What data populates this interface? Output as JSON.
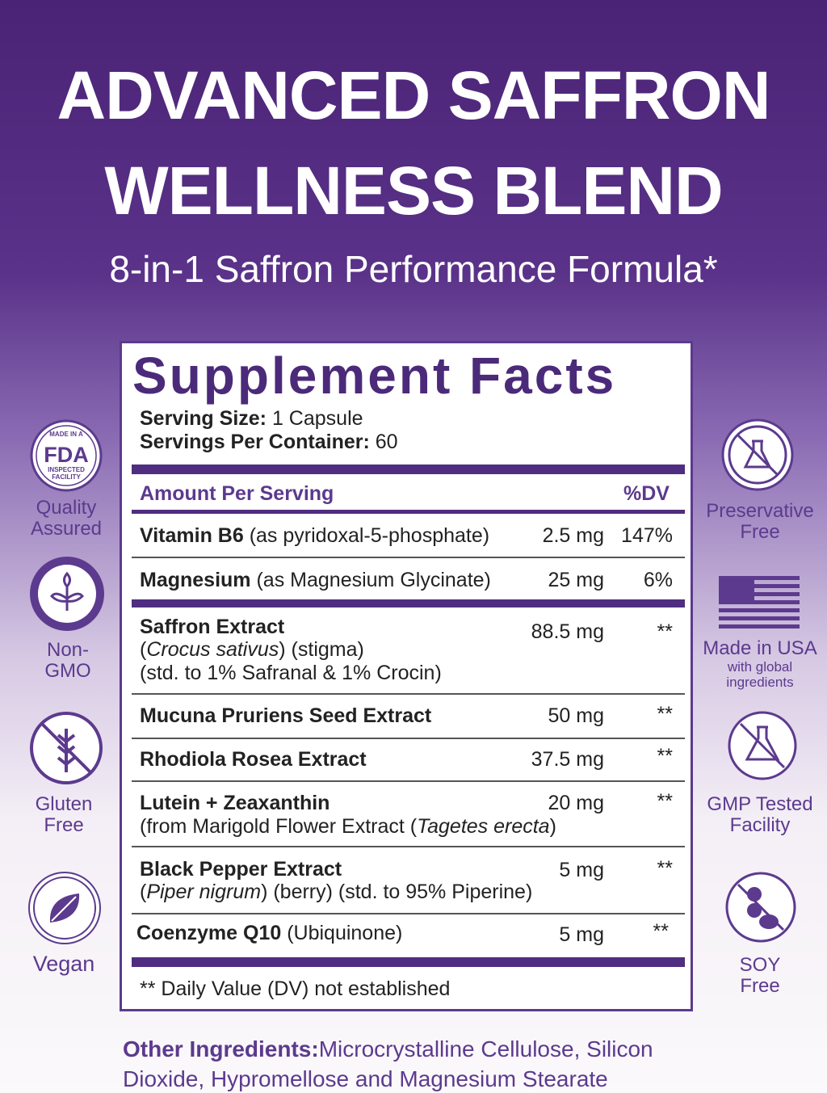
{
  "header": {
    "title_lines": [
      "ADVANCED SAFFRON",
      "WELLNESS BLEND"
    ],
    "subtitle": "8-in-1 Saffron Performance Formula*"
  },
  "facts": {
    "heading": "Supplement Facts",
    "serving_size_label": "Serving Size:",
    "serving_size": "1 Capsule",
    "servings_label": "Servings Per Container:",
    "servings": "60",
    "amount_header": "Amount Per Serving",
    "dv_header": "%DV",
    "rows": [
      {
        "name": "Vitamin B6",
        "note": "(as pyridoxal-5-phosphate)",
        "amount": "2.5 mg",
        "dv": "147%"
      },
      {
        "name": "Magnesium",
        "note": "(as Magnesium Glycinate)",
        "amount": "25 mg",
        "dv": "6%"
      },
      {
        "name": "Saffron Extract",
        "line1": [
          "(",
          "Crocus sativus",
          ") (stigma)"
        ],
        "line2": "(std. to 1% Safranal & 1% Crocin)",
        "amount": "88.5 mg",
        "dv": "**"
      },
      {
        "name": "Mucuna Pruriens Seed Extract",
        "amount": "50 mg",
        "dv": "**"
      },
      {
        "name": "Rhodiola Rosea Extract",
        "amount": "37.5 mg",
        "dv": "**"
      },
      {
        "name": "Lutein + Zeaxanthin",
        "line1": [
          "(from Marigold Flower Extract (",
          "Tagetes erecta",
          ")"
        ],
        "amount": "20 mg",
        "dv": "**"
      },
      {
        "name": "Black Pepper Extract",
        "line1": [
          "(",
          "Piper nigrum",
          ") (berry) (std. to 95% Piperine)"
        ],
        "amount": "5 mg",
        "dv": "**"
      },
      {
        "name": "Coenzyme Q10",
        "note": "(Ubiquinone)",
        "amount": "5 mg",
        "dv": "**"
      }
    ],
    "footnote": "** Daily Value (DV) not established"
  },
  "badges_left": [
    {
      "icon_text": [
        "MADE IN A",
        "FDA",
        "INSPECTED",
        "FACILITY"
      ],
      "label": [
        "Quality",
        "Assured"
      ]
    },
    {
      "label": [
        "Non-",
        "GMO"
      ]
    },
    {
      "label": [
        "Gluten",
        "Free"
      ]
    },
    {
      "label": [
        "Vegan"
      ]
    }
  ],
  "badges_right": [
    {
      "label": [
        "Preservative",
        "Free"
      ]
    },
    {
      "label": [
        "Made in USA",
        "with global",
        "ingredients"
      ]
    },
    {
      "label": [
        "GMP Tested",
        "Facility"
      ]
    },
    {
      "label": [
        "SOY",
        "Free"
      ]
    }
  ],
  "other_ingredients": {
    "label": "Other Ingredients:",
    "text_lines": [
      "Microcrystalline Cellulose, Silicon",
      "Dioxide, Hypromellose and Magnesium Stearate"
    ]
  }
}
